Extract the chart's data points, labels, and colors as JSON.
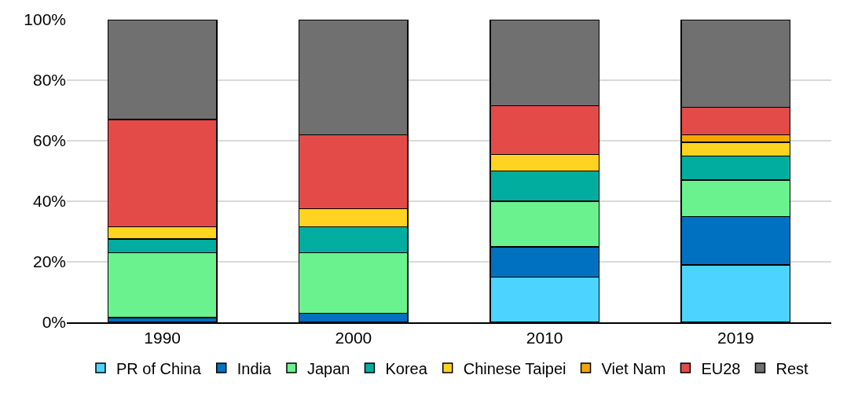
{
  "chart_data": {
    "type": "bar",
    "stacked": true,
    "categories": [
      "1990",
      "2000",
      "2010",
      "2019"
    ],
    "series": [
      {
        "name": "PR of China",
        "color": "#4dd3ff",
        "values": [
          0,
          0,
          15,
          19
        ]
      },
      {
        "name": "India",
        "color": "#0070c0",
        "values": [
          1.5,
          3,
          10,
          16
        ]
      },
      {
        "name": "Japan",
        "color": "#6af28e",
        "values": [
          21.5,
          20,
          15,
          12
        ]
      },
      {
        "name": "Korea",
        "color": "#00ad9f",
        "values": [
          4.5,
          8.5,
          10,
          8
        ]
      },
      {
        "name": "Chinese Taipei",
        "color": "#ffd320",
        "values": [
          4,
          6,
          5.5,
          4.5
        ]
      },
      {
        "name": "Viet Nam",
        "color": "#f0a800",
        "values": [
          0,
          0,
          0,
          2.5
        ]
      },
      {
        "name": "EU28",
        "color": "#e34b49",
        "values": [
          35.5,
          24.5,
          16,
          9
        ]
      },
      {
        "name": "Rest",
        "color": "#707070",
        "values": [
          33,
          38,
          28.5,
          29
        ]
      }
    ],
    "ylim": [
      0,
      100
    ],
    "yticks": [
      {
        "value": 0,
        "label": "0%"
      },
      {
        "value": 20,
        "label": "20%"
      },
      {
        "value": 40,
        "label": "40%"
      },
      {
        "value": 60,
        "label": "60%"
      },
      {
        "value": 80,
        "label": "80%"
      },
      {
        "value": 100,
        "label": "100%"
      }
    ],
    "grid": "y",
    "legend": "bottom"
  }
}
